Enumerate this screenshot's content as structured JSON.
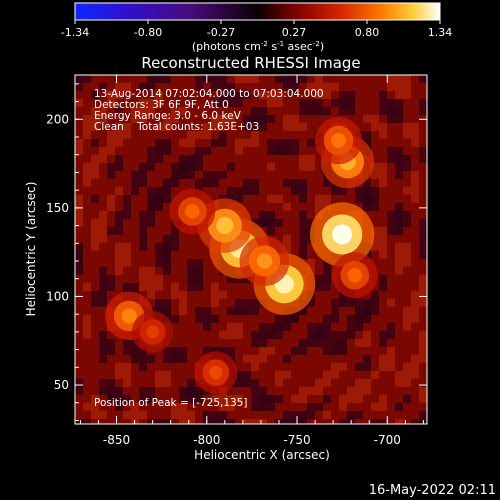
{
  "colorbar": {
    "ticks": [
      "-1.34",
      "-0.80",
      "-0.27",
      "0.27",
      "0.80",
      "1.34"
    ],
    "units_main": "(photons cm",
    "units_exp1": "-2",
    "units_mid": " s",
    "units_exp2": "-1",
    "units_mid2": " asec",
    "units_exp3": "-2",
    "units_close": ")"
  },
  "chart_data": {
    "type": "heatmap",
    "title": "Reconstructed RHESSI Image",
    "xlabel": "Heliocentric X (arcsec)",
    "ylabel": "Heliocentric Y (arcsec)",
    "xlim": [
      -873,
      -678
    ],
    "ylim": [
      28,
      225
    ],
    "x_ticks": [
      -850,
      -800,
      -750,
      -700
    ],
    "y_ticks": [
      50,
      100,
      150,
      200
    ],
    "colorbar_range": [
      -1.34,
      1.34
    ],
    "annotations": [
      "13-Aug-2014 07:02:04.000 to 07:03:04.000",
      "Detectors: 3F 6F 9F, Att 0",
      "Energy Range: 3.0 - 6.0 keV",
      "Clean    Total counts: 1.63E+03"
    ],
    "peak_label": "Position of Peak = [-725,135]",
    "sources": [
      {
        "x": -725,
        "y": 135,
        "value": 1.34
      },
      {
        "x": -757,
        "y": 107,
        "value": 1.25
      },
      {
        "x": -782,
        "y": 127,
        "value": 1.2
      },
      {
        "x": -790,
        "y": 140,
        "value": 1.0
      },
      {
        "x": -722,
        "y": 176,
        "value": 0.95
      },
      {
        "x": -727,
        "y": 188,
        "value": 0.75
      },
      {
        "x": -718,
        "y": 112,
        "value": 0.7
      },
      {
        "x": -843,
        "y": 89,
        "value": 0.8
      },
      {
        "x": -808,
        "y": 148,
        "value": 0.7
      },
      {
        "x": -795,
        "y": 57,
        "value": 0.6
      },
      {
        "x": -830,
        "y": 80,
        "value": 0.55
      },
      {
        "x": -768,
        "y": 120,
        "value": 0.85
      }
    ]
  },
  "footer": {
    "timestamp": "16-May-2022 02:11"
  }
}
